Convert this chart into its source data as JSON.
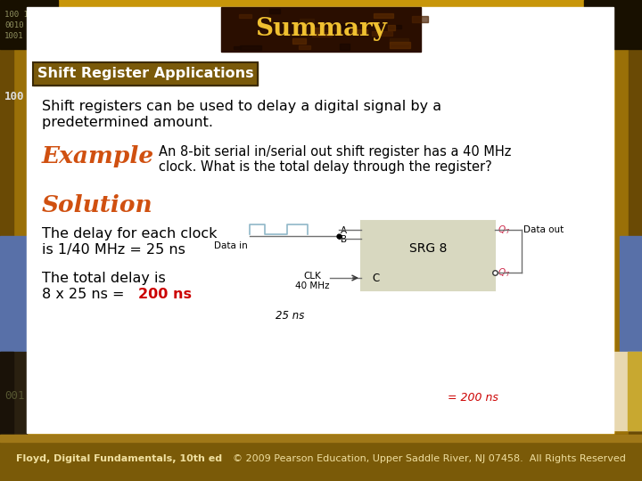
{
  "bg_outer_color": "#c8960a",
  "bg_inner_color": "#ffffff",
  "title_text": "Summary",
  "title_bg": "#2a0e00",
  "title_color": "#f0c030",
  "subtitle_text": "Shift Register Applications",
  "subtitle_bg": "#7a5a0a",
  "subtitle_color": "#ffffff",
  "body_text1": "Shift registers can be used to delay a digital signal by a\npredetermined amount.",
  "example_label": "Example",
  "example_color": "#d05010",
  "example_text": "An 8-bit serial in/serial out shift register has a 40 MHz\nclock. What is the total delay through the register?",
  "solution_label": "Solution",
  "solution_color": "#d05010",
  "delay_text1": "The delay for each clock\nis 1/40 MHz = 25 ns",
  "delay_text2_color": "#cc0000",
  "footer_left": "Floyd, Digital Fundamentals, 10th ed",
  "footer_right": "© 2009 Pearson Education, Upper Saddle River, NJ 07458.  All Rights Reserved",
  "result_text": "= 200 ns",
  "result_color": "#cc0000"
}
